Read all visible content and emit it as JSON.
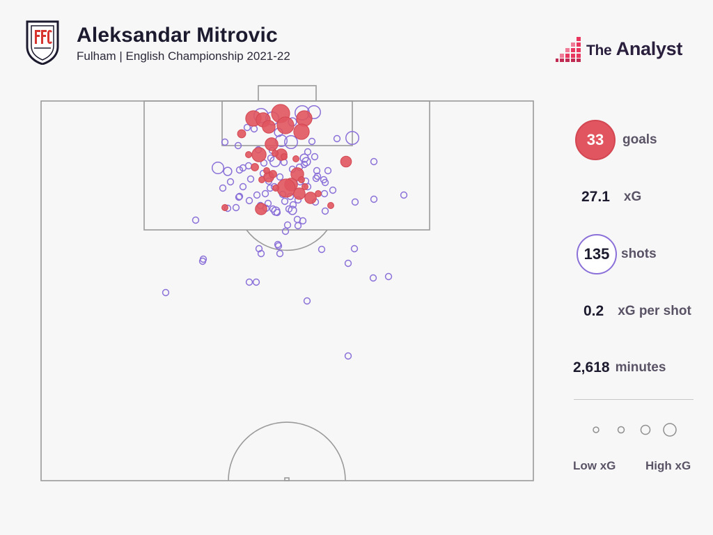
{
  "header": {
    "title": "Aleksandar Mitrovic",
    "subtitle": "Fulham | English Championship 2021-22",
    "crest_text": "FFC"
  },
  "brand": {
    "prefix": "The",
    "name": "Analyst"
  },
  "stats": {
    "goals": {
      "value": "33",
      "label": "goals"
    },
    "xg": {
      "value": "27.1",
      "label": "xG"
    },
    "shots": {
      "value": "135",
      "label": "shots"
    },
    "xg_per_shot": {
      "value": "0.2",
      "label": "xG per shot"
    },
    "minutes": {
      "value": "2,618",
      "label": "minutes"
    }
  },
  "legend": {
    "low": "Low xG",
    "high": "High xG"
  },
  "colors": {
    "goal": "#e0555f",
    "miss": "#8a70d8",
    "pitch_line": "#9a9a9a",
    "background": "#f7f7f7"
  },
  "chart_data": {
    "type": "scatter",
    "series": [
      {
        "name": "goals",
        "points": [
          {
            "x": 364,
            "y": 170,
            "xg": 0.34
          },
          {
            "x": 403,
            "y": 163,
            "xg": 0.42
          },
          {
            "x": 410,
            "y": 180,
            "xg": 0.38
          },
          {
            "x": 437,
            "y": 170,
            "xg": 0.34
          },
          {
            "x": 433,
            "y": 189,
            "xg": 0.34
          },
          {
            "x": 378,
            "y": 172,
            "xg": 0.3
          },
          {
            "x": 386,
            "y": 182,
            "xg": 0.26
          },
          {
            "x": 390,
            "y": 207,
            "xg": 0.26
          },
          {
            "x": 372,
            "y": 222,
            "xg": 0.3
          },
          {
            "x": 404,
            "y": 222,
            "xg": 0.22
          },
          {
            "x": 347,
            "y": 192,
            "xg": 0.12
          },
          {
            "x": 357,
            "y": 222,
            "xg": 0.06
          },
          {
            "x": 366,
            "y": 240,
            "xg": 0.1
          },
          {
            "x": 386,
            "y": 254,
            "xg": 0.18
          },
          {
            "x": 392,
            "y": 250,
            "xg": 0.1
          },
          {
            "x": 427,
            "y": 250,
            "xg": 0.26
          },
          {
            "x": 425,
            "y": 228,
            "xg": 0.06
          },
          {
            "x": 418,
            "y": 265,
            "xg": 0.26
          },
          {
            "x": 411,
            "y": 270,
            "xg": 0.42
          },
          {
            "x": 430,
            "y": 278,
            "xg": 0.22
          },
          {
            "x": 446,
            "y": 284,
            "xg": 0.22
          },
          {
            "x": 457,
            "y": 278,
            "xg": 0.06
          },
          {
            "x": 497,
            "y": 232,
            "xg": 0.2
          },
          {
            "x": 375,
            "y": 300,
            "xg": 0.22
          },
          {
            "x": 475,
            "y": 295,
            "xg": 0.06
          },
          {
            "x": 323,
            "y": 298,
            "xg": 0.06
          },
          {
            "x": 383,
            "y": 245,
            "xg": 0.06
          },
          {
            "x": 395,
            "y": 220,
            "xg": 0.06
          },
          {
            "x": 408,
            "y": 225,
            "xg": 0.06
          },
          {
            "x": 376,
            "y": 258,
            "xg": 0.06
          },
          {
            "x": 396,
            "y": 270,
            "xg": 0.06
          },
          {
            "x": 433,
            "y": 258,
            "xg": 0.06
          },
          {
            "x": 438,
            "y": 268,
            "xg": 0.06
          }
        ]
      },
      {
        "name": "shots",
        "points": [
          {
            "x": 375,
            "y": 166,
            "xg": 0.3
          },
          {
            "x": 391,
            "y": 170,
            "xg": 0.26
          },
          {
            "x": 434,
            "y": 162,
            "xg": 0.3
          },
          {
            "x": 451,
            "y": 161,
            "xg": 0.26
          },
          {
            "x": 420,
            "y": 175,
            "xg": 0.12
          },
          {
            "x": 400,
            "y": 190,
            "xg": 0.12
          },
          {
            "x": 418,
            "y": 204,
            "xg": 0.26
          },
          {
            "x": 404,
            "y": 202,
            "xg": 0.22
          },
          {
            "x": 506,
            "y": 198,
            "xg": 0.26
          },
          {
            "x": 484,
            "y": 199,
            "xg": 0.06
          },
          {
            "x": 323,
            "y": 204,
            "xg": 0.06
          },
          {
            "x": 342,
            "y": 209,
            "xg": 0.06
          },
          {
            "x": 355,
            "y": 183,
            "xg": 0.06
          },
          {
            "x": 365,
            "y": 185,
            "xg": 0.06
          },
          {
            "x": 391,
            "y": 216,
            "xg": 0.06
          },
          {
            "x": 371,
            "y": 215,
            "xg": 0.06
          },
          {
            "x": 442,
            "y": 218,
            "xg": 0.06
          },
          {
            "x": 452,
            "y": 225,
            "xg": 0.06
          },
          {
            "x": 440,
            "y": 232,
            "xg": 0.12
          },
          {
            "x": 395,
            "y": 232,
            "xg": 0.18
          },
          {
            "x": 389,
            "y": 227,
            "xg": 0.06
          },
          {
            "x": 408,
            "y": 233,
            "xg": 0.06
          },
          {
            "x": 379,
            "y": 234,
            "xg": 0.06
          },
          {
            "x": 313,
            "y": 241,
            "xg": 0.22
          },
          {
            "x": 327,
            "y": 246,
            "xg": 0.12
          },
          {
            "x": 344,
            "y": 244,
            "xg": 0.06
          },
          {
            "x": 349,
            "y": 241,
            "xg": 0.06
          },
          {
            "x": 357,
            "y": 238,
            "xg": 0.06
          },
          {
            "x": 420,
            "y": 243,
            "xg": 0.06
          },
          {
            "x": 430,
            "y": 240,
            "xg": 0.06
          },
          {
            "x": 437,
            "y": 236,
            "xg": 0.06
          },
          {
            "x": 455,
            "y": 245,
            "xg": 0.06
          },
          {
            "x": 456,
            "y": 253,
            "xg": 0.06
          },
          {
            "x": 471,
            "y": 245,
            "xg": 0.06
          },
          {
            "x": 465,
            "y": 258,
            "xg": 0.06
          },
          {
            "x": 467,
            "y": 262,
            "xg": 0.06
          },
          {
            "x": 454,
            "y": 256,
            "xg": 0.06
          },
          {
            "x": 439,
            "y": 260,
            "xg": 0.06
          },
          {
            "x": 431,
            "y": 261,
            "xg": 0.06
          },
          {
            "x": 402,
            "y": 254,
            "xg": 0.06
          },
          {
            "x": 386,
            "y": 260,
            "xg": 0.06
          },
          {
            "x": 378,
            "y": 249,
            "xg": 0.06
          },
          {
            "x": 360,
            "y": 257,
            "xg": 0.06
          },
          {
            "x": 331,
            "y": 261,
            "xg": 0.06
          },
          {
            "x": 320,
            "y": 270,
            "xg": 0.06
          },
          {
            "x": 388,
            "y": 270,
            "xg": 0.06
          },
          {
            "x": 394,
            "y": 268,
            "xg": 0.06
          },
          {
            "x": 381,
            "y": 278,
            "xg": 0.06
          },
          {
            "x": 369,
            "y": 280,
            "xg": 0.06
          },
          {
            "x": 344,
            "y": 282,
            "xg": 0.06
          },
          {
            "x": 343,
            "y": 283,
            "xg": 0.06
          },
          {
            "x": 358,
            "y": 288,
            "xg": 0.06
          },
          {
            "x": 478,
            "y": 273,
            "xg": 0.06
          },
          {
            "x": 466,
            "y": 278,
            "xg": 0.06
          },
          {
            "x": 442,
            "y": 268,
            "xg": 0.06
          },
          {
            "x": 417,
            "y": 282,
            "xg": 0.06
          },
          {
            "x": 409,
            "y": 289,
            "xg": 0.06
          },
          {
            "x": 428,
            "y": 287,
            "xg": 0.06
          },
          {
            "x": 453,
            "y": 290,
            "xg": 0.06
          },
          {
            "x": 406,
            "y": 279,
            "xg": 0.06
          },
          {
            "x": 510,
            "y": 290,
            "xg": 0.06
          },
          {
            "x": 537,
            "y": 286,
            "xg": 0.06
          },
          {
            "x": 580,
            "y": 280,
            "xg": 0.06
          },
          {
            "x": 537,
            "y": 232,
            "xg": 0.06
          },
          {
            "x": 339,
            "y": 298,
            "xg": 0.06
          },
          {
            "x": 327,
            "y": 299,
            "xg": 0.06
          },
          {
            "x": 374,
            "y": 295,
            "xg": 0.06
          },
          {
            "x": 385,
            "y": 292,
            "xg": 0.06
          },
          {
            "x": 382,
            "y": 299,
            "xg": 0.06
          },
          {
            "x": 392,
            "y": 300,
            "xg": 0.06
          },
          {
            "x": 396,
            "y": 303,
            "xg": 0.12
          },
          {
            "x": 398,
            "y": 305,
            "xg": 0.06
          },
          {
            "x": 420,
            "y": 302,
            "xg": 0.12
          },
          {
            "x": 421,
            "y": 294,
            "xg": 0.06
          },
          {
            "x": 427,
            "y": 315,
            "xg": 0.06
          },
          {
            "x": 435,
            "y": 317,
            "xg": 0.06
          },
          {
            "x": 428,
            "y": 324,
            "xg": 0.06
          },
          {
            "x": 413,
            "y": 323,
            "xg": 0.06
          },
          {
            "x": 410,
            "y": 332,
            "xg": 0.06
          },
          {
            "x": 467,
            "y": 303,
            "xg": 0.06
          },
          {
            "x": 281,
            "y": 316,
            "xg": 0.06
          },
          {
            "x": 399,
            "y": 351,
            "xg": 0.06
          },
          {
            "x": 400,
            "y": 353,
            "xg": 0.06
          },
          {
            "x": 372,
            "y": 357,
            "xg": 0.06
          },
          {
            "x": 375,
            "y": 364,
            "xg": 0.06
          },
          {
            "x": 402,
            "y": 364,
            "xg": 0.06
          },
          {
            "x": 462,
            "y": 358,
            "xg": 0.06
          },
          {
            "x": 509,
            "y": 357,
            "xg": 0.06
          },
          {
            "x": 292,
            "y": 372,
            "xg": 0.06
          },
          {
            "x": 291,
            "y": 375,
            "xg": 0.06
          },
          {
            "x": 500,
            "y": 378,
            "xg": 0.06
          },
          {
            "x": 536,
            "y": 399,
            "xg": 0.06
          },
          {
            "x": 558,
            "y": 397,
            "xg": 0.06
          },
          {
            "x": 358,
            "y": 405,
            "xg": 0.06
          },
          {
            "x": 368,
            "y": 405,
            "xg": 0.06
          },
          {
            "x": 238,
            "y": 420,
            "xg": 0.06
          },
          {
            "x": 441,
            "y": 432,
            "xg": 0.06
          },
          {
            "x": 500,
            "y": 511,
            "xg": 0.06
          },
          {
            "x": 415,
            "y": 300,
            "xg": 0.06
          },
          {
            "x": 349,
            "y": 268,
            "xg": 0.06
          },
          {
            "x": 448,
            "y": 203,
            "xg": 0.06
          },
          {
            "x": 437,
            "y": 227,
            "xg": 0.12
          }
        ]
      }
    ],
    "legend_sizes": [
      0.06,
      0.12,
      0.22,
      0.34
    ]
  }
}
